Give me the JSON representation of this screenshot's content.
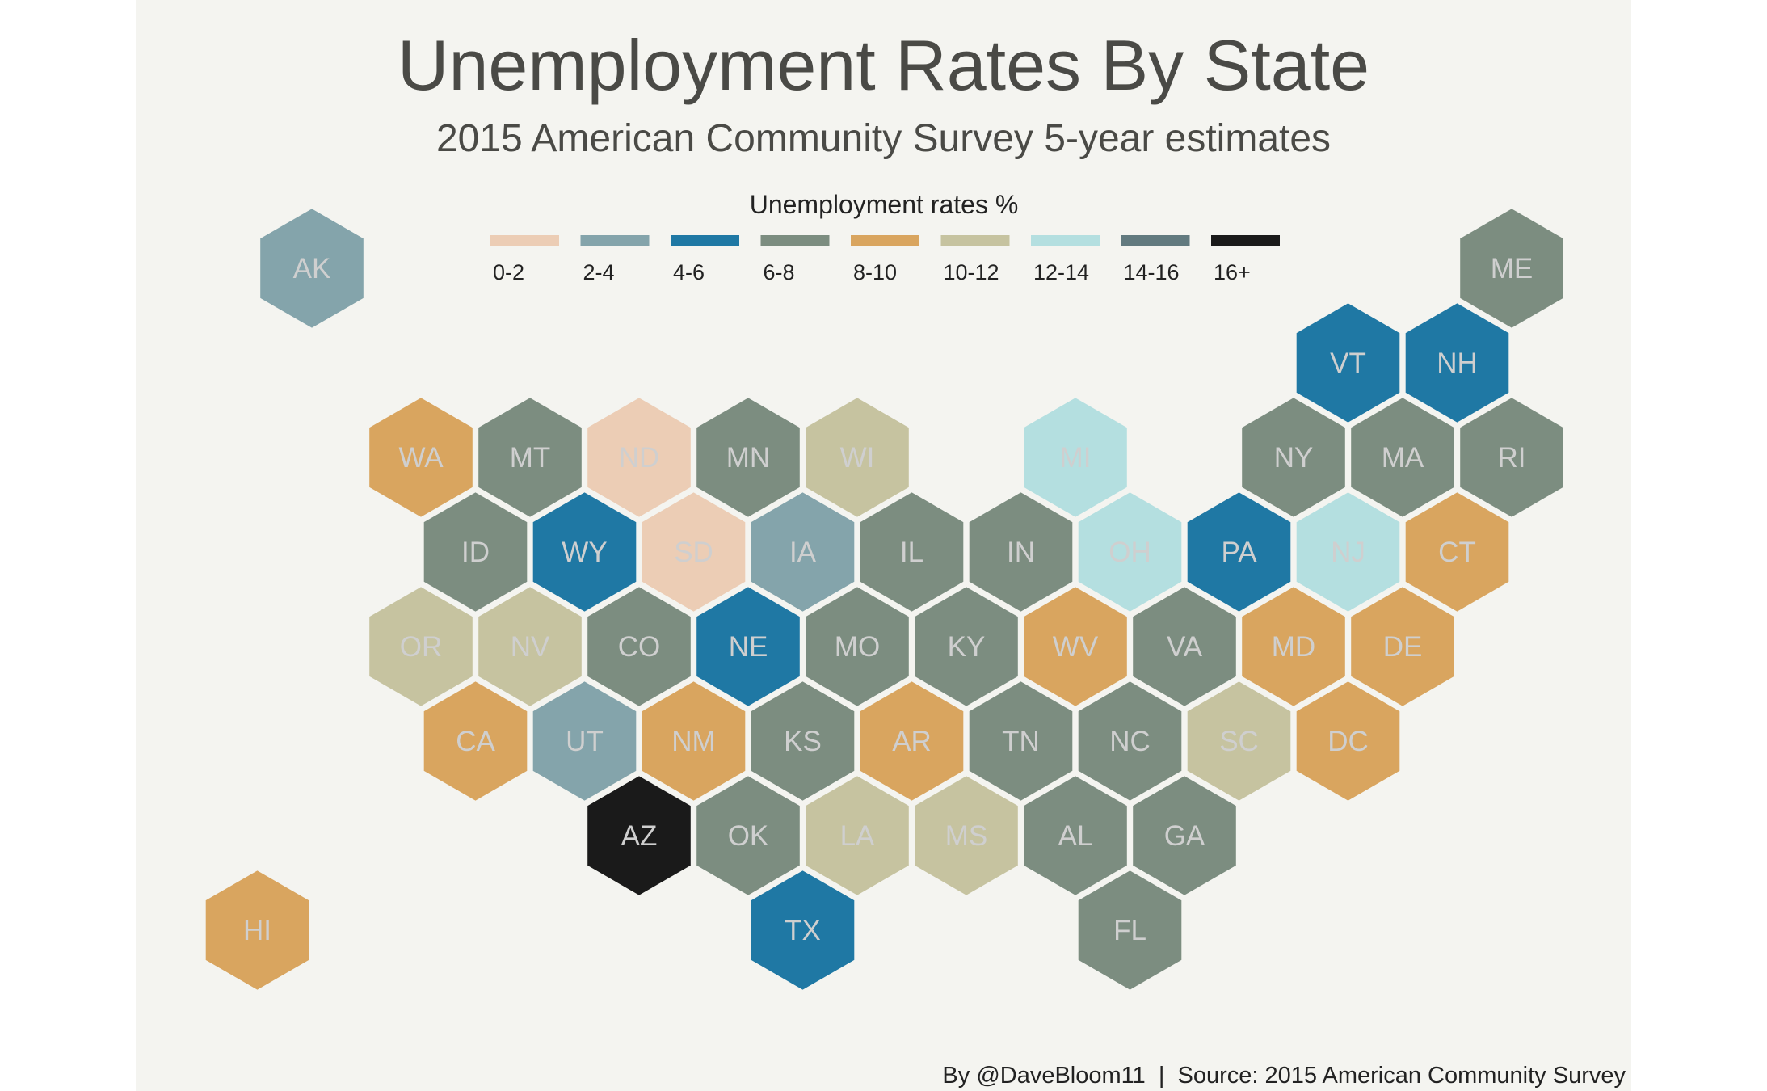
{
  "title": "Unemployment Rates By State",
  "subtitle": "2015 American Community Survey 5-year estimates",
  "caption": "By @DaveBloom11  |  Source: 2015 American Community Survey",
  "legend": {
    "title": "Unemployment rates %",
    "items": [
      {
        "label": "0-2",
        "color": "#eccdb5"
      },
      {
        "label": "2-4",
        "color": "#84a4ab"
      },
      {
        "label": "4-6",
        "color": "#1f78a4"
      },
      {
        "label": "6-8",
        "color": "#7c8d80"
      },
      {
        "label": "8-10",
        "color": "#d9a55f"
      },
      {
        "label": "10-12",
        "color": "#c6c3a0"
      },
      {
        "label": "12-14",
        "color": "#b4dfe0"
      },
      {
        "label": "14-16",
        "color": "#627a7f"
      },
      {
        "label": "16+",
        "color": "#1a1a1a"
      }
    ]
  },
  "label_color": "#cfcfcf",
  "states": [
    {
      "abbr": "AK",
      "range": "2-4",
      "row": 0,
      "col": 1.0
    },
    {
      "abbr": "ME",
      "range": "6-8",
      "row": 0,
      "col": 12.0
    },
    {
      "abbr": "VT",
      "range": "4-6",
      "row": 1,
      "col": 10.5
    },
    {
      "abbr": "NH",
      "range": "4-6",
      "row": 1,
      "col": 11.5
    },
    {
      "abbr": "WA",
      "range": "8-10",
      "row": 2,
      "col": 2.0
    },
    {
      "abbr": "MT",
      "range": "6-8",
      "row": 2,
      "col": 3.0
    },
    {
      "abbr": "ND",
      "range": "0-2",
      "row": 2,
      "col": 4.0
    },
    {
      "abbr": "MN",
      "range": "6-8",
      "row": 2,
      "col": 5.0
    },
    {
      "abbr": "WI",
      "range": "10-12",
      "row": 2,
      "col": 6.0
    },
    {
      "abbr": "MI",
      "range": "12-14",
      "row": 2,
      "col": 8.0
    },
    {
      "abbr": "NY",
      "range": "6-8",
      "row": 2,
      "col": 10.0
    },
    {
      "abbr": "MA",
      "range": "6-8",
      "row": 2,
      "col": 11.0
    },
    {
      "abbr": "RI",
      "range": "6-8",
      "row": 2,
      "col": 12.0
    },
    {
      "abbr": "ID",
      "range": "6-8",
      "row": 3,
      "col": 2.5
    },
    {
      "abbr": "WY",
      "range": "4-6",
      "row": 3,
      "col": 3.5
    },
    {
      "abbr": "SD",
      "range": "0-2",
      "row": 3,
      "col": 4.5
    },
    {
      "abbr": "IA",
      "range": "2-4",
      "row": 3,
      "col": 5.5
    },
    {
      "abbr": "IL",
      "range": "6-8",
      "row": 3,
      "col": 6.5
    },
    {
      "abbr": "IN",
      "range": "6-8",
      "row": 3,
      "col": 7.5
    },
    {
      "abbr": "OH",
      "range": "12-14",
      "row": 3,
      "col": 8.5
    },
    {
      "abbr": "PA",
      "range": "4-6",
      "row": 3,
      "col": 9.5
    },
    {
      "abbr": "NJ",
      "range": "12-14",
      "row": 3,
      "col": 10.5
    },
    {
      "abbr": "CT",
      "range": "8-10",
      "row": 3,
      "col": 11.5
    },
    {
      "abbr": "OR",
      "range": "10-12",
      "row": 4,
      "col": 2.0
    },
    {
      "abbr": "NV",
      "range": "10-12",
      "row": 4,
      "col": 3.0
    },
    {
      "abbr": "CO",
      "range": "6-8",
      "row": 4,
      "col": 4.0
    },
    {
      "abbr": "NE",
      "range": "4-6",
      "row": 4,
      "col": 5.0
    },
    {
      "abbr": "MO",
      "range": "6-8",
      "row": 4,
      "col": 6.0
    },
    {
      "abbr": "KY",
      "range": "6-8",
      "row": 4,
      "col": 7.0
    },
    {
      "abbr": "WV",
      "range": "8-10",
      "row": 4,
      "col": 8.0
    },
    {
      "abbr": "VA",
      "range": "6-8",
      "row": 4,
      "col": 9.0
    },
    {
      "abbr": "MD",
      "range": "8-10",
      "row": 4,
      "col": 10.0
    },
    {
      "abbr": "DE",
      "range": "8-10",
      "row": 4,
      "col": 11.0
    },
    {
      "abbr": "CA",
      "range": "8-10",
      "row": 5,
      "col": 2.5
    },
    {
      "abbr": "UT",
      "range": "2-4",
      "row": 5,
      "col": 3.5
    },
    {
      "abbr": "NM",
      "range": "8-10",
      "row": 5,
      "col": 4.5
    },
    {
      "abbr": "KS",
      "range": "6-8",
      "row": 5,
      "col": 5.5
    },
    {
      "abbr": "AR",
      "range": "8-10",
      "row": 5,
      "col": 6.5
    },
    {
      "abbr": "TN",
      "range": "6-8",
      "row": 5,
      "col": 7.5
    },
    {
      "abbr": "NC",
      "range": "6-8",
      "row": 5,
      "col": 8.5
    },
    {
      "abbr": "SC",
      "range": "10-12",
      "row": 5,
      "col": 9.5
    },
    {
      "abbr": "DC",
      "range": "8-10",
      "row": 5,
      "col": 10.5
    },
    {
      "abbr": "AZ",
      "range": "16+",
      "row": 6,
      "col": 4.0
    },
    {
      "abbr": "OK",
      "range": "6-8",
      "row": 6,
      "col": 5.0
    },
    {
      "abbr": "LA",
      "range": "10-12",
      "row": 6,
      "col": 6.0
    },
    {
      "abbr": "MS",
      "range": "10-12",
      "row": 6,
      "col": 7.0
    },
    {
      "abbr": "AL",
      "range": "6-8",
      "row": 6,
      "col": 8.0
    },
    {
      "abbr": "GA",
      "range": "6-8",
      "row": 6,
      "col": 9.0
    },
    {
      "abbr": "HI",
      "range": "8-10",
      "row": 7,
      "col": 0.5
    },
    {
      "abbr": "TX",
      "range": "4-6",
      "row": 7,
      "col": 5.5
    },
    {
      "abbr": "FL",
      "range": "6-8",
      "row": 7,
      "col": 8.5
    }
  ]
}
